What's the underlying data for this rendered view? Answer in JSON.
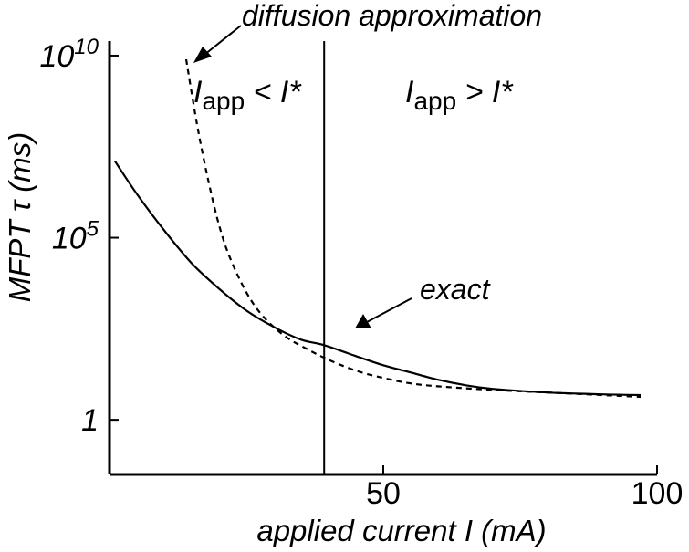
{
  "chart_data": {
    "type": "line",
    "xlabel": "applied current I (mA)",
    "ylabel": "MFPT τ (ms)",
    "xlim": [
      0,
      100
    ],
    "ylim_log10": [
      -1.5,
      10.4
    ],
    "y_scale": "log",
    "grid": false,
    "x_ticks": [
      {
        "value": 50,
        "label": "50"
      },
      {
        "value": 100,
        "label": "100"
      }
    ],
    "y_ticks": [
      {
        "log10": 0,
        "mantissa": "1",
        "exponent": ""
      },
      {
        "log10": 5,
        "mantissa": "10",
        "exponent": "5"
      },
      {
        "log10": 10,
        "mantissa": "10",
        "exponent": "10"
      }
    ],
    "threshold_current": 39.2,
    "series": [
      {
        "name": "exact",
        "style": "solid",
        "x_log10y": [
          [
            1,
            7.1
          ],
          [
            5,
            6.2
          ],
          [
            10,
            5.2
          ],
          [
            15,
            4.3
          ],
          [
            20,
            3.6
          ],
          [
            25,
            3.0
          ],
          [
            30,
            2.55
          ],
          [
            35,
            2.2
          ],
          [
            39.2,
            2.05
          ],
          [
            45,
            1.75
          ],
          [
            50,
            1.5
          ],
          [
            55,
            1.3
          ],
          [
            60,
            1.1
          ],
          [
            65,
            0.95
          ],
          [
            70,
            0.85
          ],
          [
            80,
            0.75
          ],
          [
            90,
            0.7
          ],
          [
            97,
            0.68
          ]
        ]
      },
      {
        "name": "diffusion approximation",
        "style": "dashed",
        "x_log10y": [
          [
            14,
            9.9
          ],
          [
            16,
            8.1
          ],
          [
            18,
            6.6
          ],
          [
            20,
            5.35
          ],
          [
            22,
            4.45
          ],
          [
            25,
            3.5
          ],
          [
            28,
            2.85
          ],
          [
            32,
            2.3
          ],
          [
            36,
            1.95
          ],
          [
            40,
            1.65
          ],
          [
            45,
            1.35
          ],
          [
            50,
            1.15
          ],
          [
            55,
            1.0
          ],
          [
            60,
            0.92
          ],
          [
            70,
            0.82
          ],
          [
            80,
            0.75
          ],
          [
            90,
            0.68
          ],
          [
            97,
            0.63
          ]
        ]
      }
    ],
    "annotations": {
      "diffusion": "diffusion approximation",
      "exact": "exact",
      "left_region": {
        "I": "I",
        "sub": "app",
        "rest": " < I*"
      },
      "right_region": {
        "I": "I",
        "sub": "app",
        "rest": " > I*"
      }
    }
  }
}
